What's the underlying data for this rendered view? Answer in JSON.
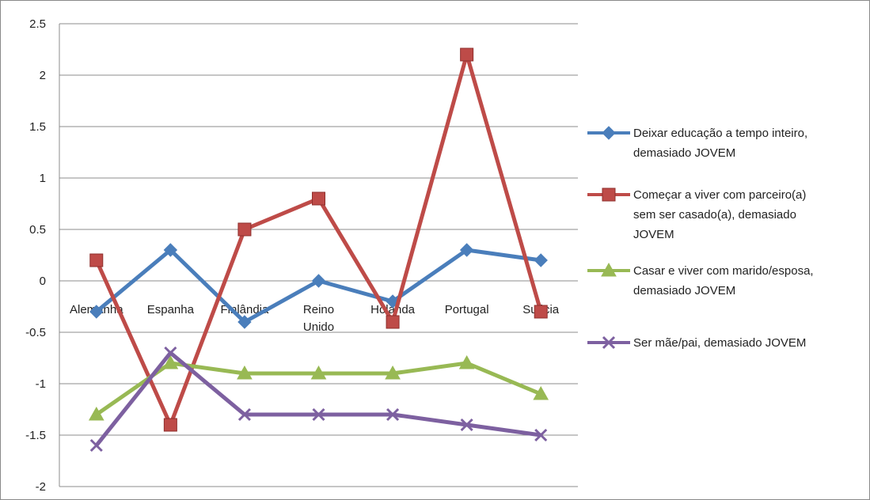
{
  "chart_data": {
    "type": "line",
    "categories": [
      "Alemanha",
      "Espanha",
      "Finlândia",
      "Reino Unido",
      "Holanda",
      "Portugal",
      "Suécia"
    ],
    "category_lines": [
      [
        "Alemanha"
      ],
      [
        "Espanha"
      ],
      [
        "Finlândia"
      ],
      [
        "Reino",
        "Unido"
      ],
      [
        "Holanda"
      ],
      [
        "Portugal"
      ],
      [
        "Suécia"
      ]
    ],
    "series": [
      {
        "name": "Deixar educação a tempo inteiro, demasiado JOVEM",
        "name_lines": [
          "Deixar educação a tempo inteiro,",
          "demasiado JOVEM"
        ],
        "color": "#4a7ebb",
        "marker": "diamond",
        "values": [
          -0.3,
          0.3,
          -0.4,
          0.0,
          -0.2,
          0.3,
          0.2
        ]
      },
      {
        "name": "Começar a viver com parceiro(a) sem ser casado(a), demasiado JOVEM",
        "name_lines": [
          "Começar a viver com parceiro(a)",
          "sem ser casado(a), demasiado",
          "JOVEM"
        ],
        "color": "#be4b48",
        "marker": "square",
        "values": [
          0.2,
          -1.4,
          0.5,
          0.8,
          -0.4,
          2.2,
          -0.3
        ]
      },
      {
        "name": "Casar e viver com marido/esposa, demasiado JOVEM",
        "name_lines": [
          "Casar e viver com marido/esposa,",
          "demasiado JOVEM"
        ],
        "color": "#98b954",
        "marker": "triangle",
        "values": [
          -1.3,
          -0.8,
          -0.9,
          -0.9,
          -0.9,
          -0.8,
          -1.1
        ]
      },
      {
        "name": "Ser mãe/pai, demasiado JOVEM",
        "name_lines": [
          "Ser mãe/pai, demasiado JOVEM"
        ],
        "color": "#7d60a0",
        "marker": "x",
        "values": [
          -1.6,
          -0.7,
          -1.3,
          -1.3,
          -1.3,
          -1.4,
          -1.5
        ]
      }
    ],
    "y_ticks": [
      "2.5",
      "2",
      "1.5",
      "1",
      "0.5",
      "0",
      "-0.5",
      "-1",
      "-1.5",
      "-2"
    ],
    "ylim": [
      -2,
      2.5
    ],
    "grid": true,
    "legend_position": "right"
  }
}
